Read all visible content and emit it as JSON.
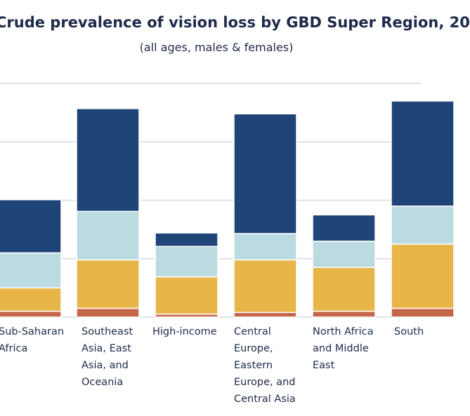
{
  "title": "Crude prevalence of vision loss by GBD Super Region, 20",
  "subtitle": "(all ages, males & females)",
  "colors": {
    "dark_blue": "#1f4578",
    "light_blue": "#bcdbe0",
    "yellow": "#e8b549",
    "rust": "#c5664a",
    "grid": "#d9d9d9",
    "text": "#1e2a4a"
  },
  "chart_data": {
    "type": "bar",
    "stacked": true,
    "title": "Crude prevalence of vision loss by GBD Super Region, 20",
    "subtitle": "(all ages, males & females)",
    "categories": [
      "Sub-Saharan\nAfrica",
      "Southeast\nAsia, East\nAsia, and\nOceania",
      "High-income",
      "Central\nEurope,\nEastern\nEurope, and\nCentral Asia",
      "North Africa\nand Middle\nEast",
      "South"
    ],
    "series": [
      {
        "color": "#c5664a",
        "values": [
          0.1,
          0.15,
          0.05,
          0.08,
          0.1,
          0.15
        ]
      },
      {
        "color": "#e8b549",
        "values": [
          0.4,
          0.83,
          0.64,
          0.9,
          0.75,
          1.1
        ]
      },
      {
        "color": "#bcdbe0",
        "values": [
          0.6,
          0.83,
          0.52,
          0.45,
          0.45,
          0.65
        ]
      },
      {
        "color": "#1f4578",
        "values": [
          0.91,
          1.76,
          0.23,
          2.05,
          0.45,
          1.8
        ]
      }
    ],
    "ylim": [
      0,
      4
    ],
    "grid": true,
    "legend": "none"
  }
}
